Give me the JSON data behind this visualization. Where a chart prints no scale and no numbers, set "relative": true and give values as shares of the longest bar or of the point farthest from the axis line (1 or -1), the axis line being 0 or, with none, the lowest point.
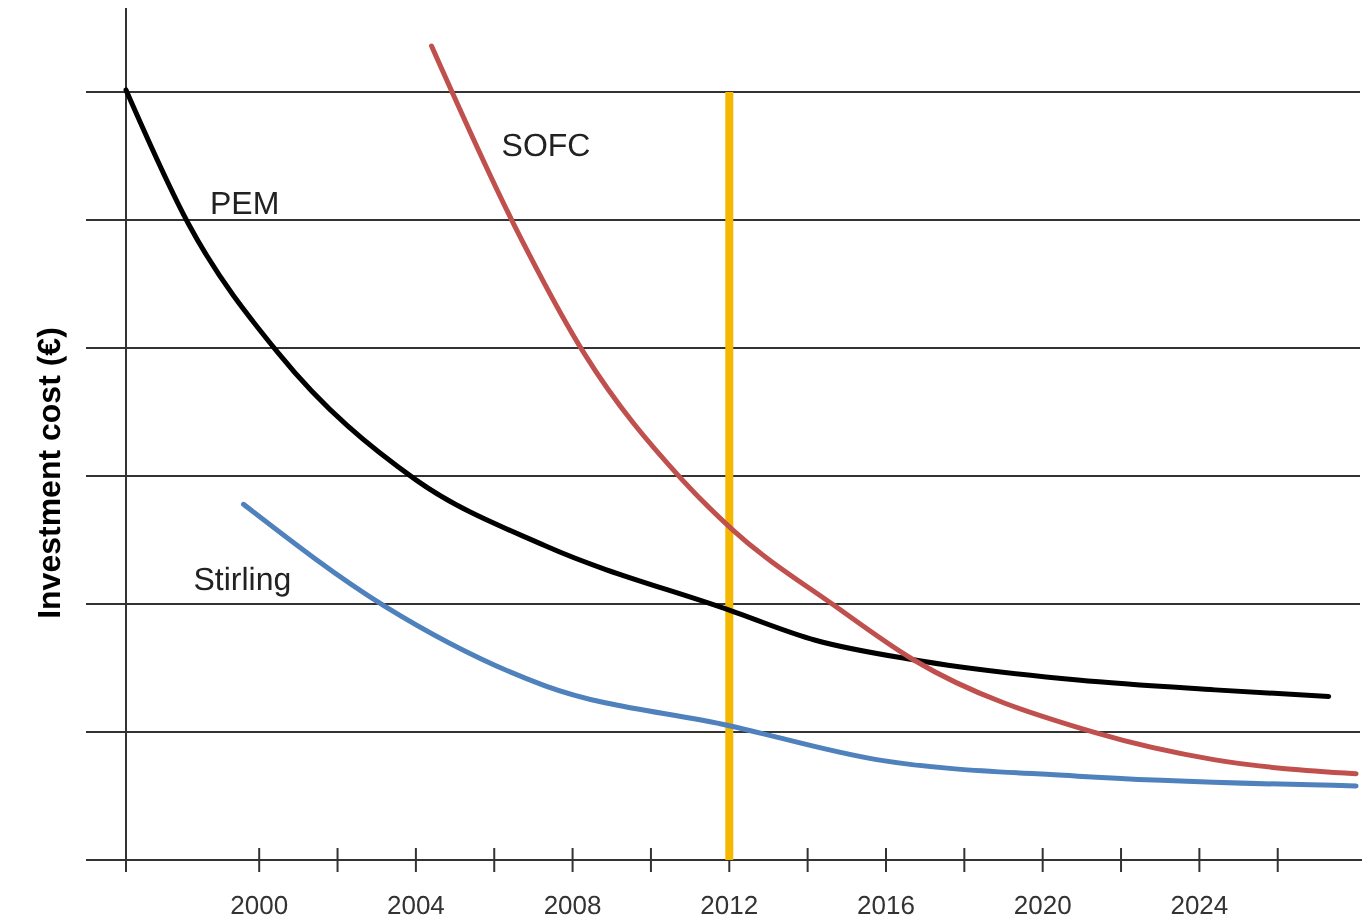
{
  "chart_data": {
    "type": "line",
    "relative": true,
    "ylabel": "Investment cost (€)",
    "xlim": [
      1996.6,
      2028.1
    ],
    "xticks": [
      {
        "value": 2000,
        "label": "2000"
      },
      {
        "value": 2002,
        "label": null
      },
      {
        "value": 2004,
        "label": "2004"
      },
      {
        "value": 2006,
        "label": null
      },
      {
        "value": 2008,
        "label": "2008"
      },
      {
        "value": 2010,
        "label": null
      },
      {
        "value": 2012,
        "label": "2012"
      },
      {
        "value": 2014,
        "label": null
      },
      {
        "value": 2016,
        "label": "2016"
      },
      {
        "value": 2018,
        "label": null
      },
      {
        "value": 2020,
        "label": "2020"
      },
      {
        "value": 2022,
        "label": null
      },
      {
        "value": 2024,
        "label": "2024"
      },
      {
        "value": 2026,
        "label": null
      }
    ],
    "grid": "y",
    "legend": false,
    "marker": "none",
    "line_style": "solid",
    "series": [
      {
        "name": "PEM",
        "color": "#000000",
        "x": [
          1996.6,
          1998.2,
          2000.5,
          2004.0,
          2007.3,
          2012.0,
          2014.2,
          2016.7,
          2020.9,
          2024.4,
          2027.3
        ],
        "values": [
          0.946,
          0.781,
          0.622,
          0.467,
          0.386,
          0.307,
          0.27,
          0.246,
          0.221,
          0.209,
          0.201
        ]
      },
      {
        "name": "SOFC",
        "color": "#c0504d",
        "x": [
          2004.4,
          2006.5,
          2008.3,
          2010.8,
          2012.1,
          2014.7,
          2016.7,
          2021.3,
          2024.4,
          2028.0
        ],
        "values": [
          1.0,
          0.781,
          0.622,
          0.467,
          0.405,
          0.312,
          0.246,
          0.157,
          0.123,
          0.106
        ]
      },
      {
        "name": "Stirling",
        "color": "#4f81bd",
        "x": [
          1999.6,
          2003.2,
          2007.3,
          2012.0,
          2015.8,
          2020.9,
          2028.0
        ],
        "values": [
          0.437,
          0.312,
          0.214,
          0.165,
          0.123,
          0.103,
          0.091
        ]
      }
    ],
    "ref_lines": [
      {
        "axis": "x",
        "value": 2012,
        "color": "#f5b800"
      }
    ]
  }
}
